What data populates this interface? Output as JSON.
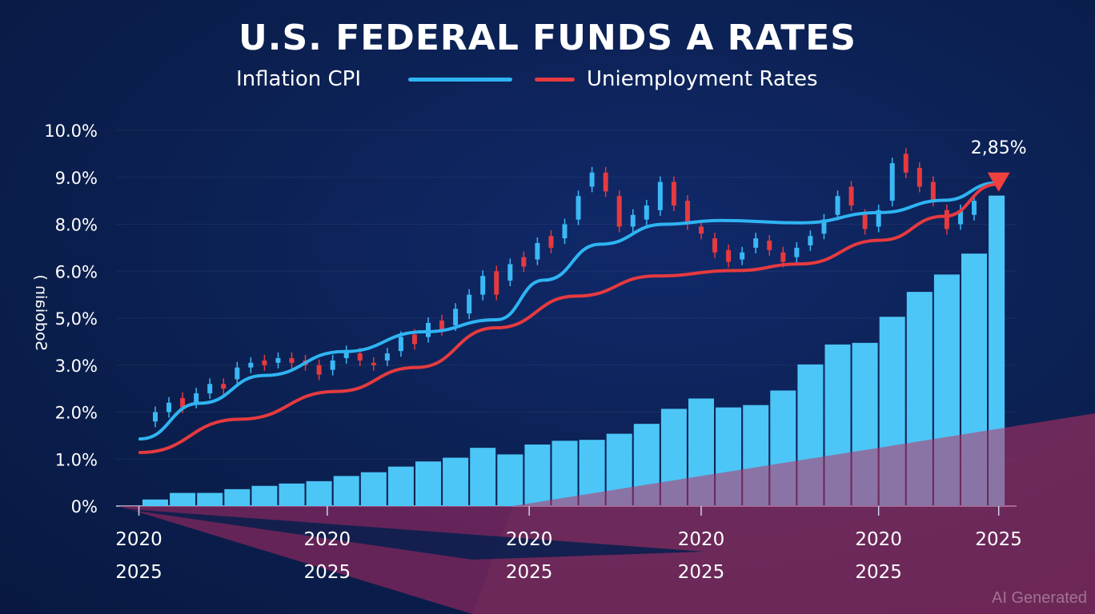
{
  "chart_data": {
    "type": "bar",
    "title": "U.S. FEDERAL FUNDS A RATES",
    "ylabel": "Sodoiain )",
    "legend": [
      {
        "label": "Inflation CPI",
        "color": "#2fb4f2"
      },
      {
        "label": "Uniemployment Rates",
        "color": "#e63a3f"
      }
    ],
    "legend_placement": "top-center",
    "y_ticks": [
      {
        "label": "0%",
        "value": 0
      },
      {
        "label": "1.0%",
        "value": 1
      },
      {
        "label": "2.0%",
        "value": 2
      },
      {
        "label": "3.0%",
        "value": 3
      },
      {
        "label": "5,0%",
        "value": 5
      },
      {
        "label": "6.0%",
        "value": 6
      },
      {
        "label": "8.0%",
        "value": 8
      },
      {
        "label": "9.0%",
        "value": 9
      },
      {
        "label": "10.0%",
        "value": 10
      }
    ],
    "x_ticks": [
      {
        "at": -0.6,
        "lines": [
          "2020",
          "2025"
        ]
      },
      {
        "at": 6.3,
        "lines": [
          "2020",
          "2025"
        ]
      },
      {
        "at": 13.7,
        "lines": [
          "2020",
          "2025"
        ]
      },
      {
        "at": 20.0,
        "lines": [
          "2020",
          "2025"
        ]
      },
      {
        "at": 26.5,
        "lines": [
          "2020",
          "2025"
        ]
      },
      {
        "at": 30.9,
        "lines": [
          "2025"
        ]
      }
    ],
    "bars": {
      "color": "#4cc6f7",
      "values": [
        0.14,
        0.28,
        0.28,
        0.36,
        0.43,
        0.48,
        0.53,
        0.64,
        0.72,
        0.84,
        0.95,
        1.03,
        1.24,
        1.1,
        1.31,
        1.39,
        1.41,
        1.54,
        1.75,
        2.07,
        2.29,
        2.1,
        2.15,
        2.46,
        3.03,
        3.88,
        3.95,
        5.03,
        5.56,
        5.93,
        6.75,
        8.61
      ]
    },
    "series": [
      {
        "name": "Inflation CPI",
        "color": "#2fb4f2",
        "x": [
          -0.56,
          1.64,
          3.99,
          6.92,
          9.85,
          12.49,
          14.25,
          16.3,
          18.65,
          20.7,
          23.64,
          26.57,
          28.91,
          30.82
        ],
        "y": [
          1.43,
          2.19,
          2.78,
          3.58,
          4.42,
          4.93,
          5.81,
          7.15,
          8.0,
          8.08,
          8.03,
          8.25,
          8.51,
          8.88
        ]
      },
      {
        "name": "Uniemployment Rates",
        "color": "#e63a3f",
        "x": [
          -0.56,
          3.11,
          6.63,
          9.56,
          12.49,
          15.42,
          18.36,
          21.29,
          23.64,
          26.57,
          28.91,
          30.82
        ],
        "y": [
          1.14,
          1.85,
          2.44,
          2.95,
          4.59,
          5.47,
          5.9,
          6.03,
          6.31,
          7.32,
          8.17,
          8.85
        ]
      }
    ],
    "candles": [
      [
        0,
        1.8,
        2.0
      ],
      [
        0.5,
        2.0,
        2.2
      ],
      [
        1,
        2.3,
        2.1
      ],
      [
        1.5,
        2.2,
        2.4
      ],
      [
        2,
        2.4,
        2.6
      ],
      [
        2.5,
        2.6,
        2.5
      ],
      [
        3,
        2.7,
        2.95
      ],
      [
        3.5,
        2.95,
        3.1
      ],
      [
        4,
        3.2,
        3.0
      ],
      [
        4.5,
        3.1,
        3.3
      ],
      [
        5,
        3.3,
        3.1
      ],
      [
        5.5,
        3.2,
        3.0
      ],
      [
        6,
        3.0,
        2.8
      ],
      [
        6.5,
        2.9,
        3.2
      ],
      [
        7,
        3.3,
        3.6
      ],
      [
        7.5,
        3.5,
        3.2
      ],
      [
        8,
        3.1,
        3.0
      ],
      [
        8.5,
        3.2,
        3.5
      ],
      [
        9,
        3.6,
        4.2
      ],
      [
        9.5,
        4.3,
        3.9
      ],
      [
        10,
        4.2,
        4.8
      ],
      [
        10.5,
        4.9,
        4.5
      ],
      [
        11,
        4.7,
        5.2
      ],
      [
        11.5,
        5.1,
        5.5
      ],
      [
        12,
        5.5,
        5.9
      ],
      [
        12.5,
        6.0,
        5.5
      ],
      [
        13,
        5.8,
        6.3
      ],
      [
        13.5,
        6.6,
        6.2
      ],
      [
        14,
        6.5,
        7.2
      ],
      [
        14.5,
        7.5,
        7.0
      ],
      [
        15,
        7.4,
        8.0
      ],
      [
        15.5,
        8.1,
        8.6
      ],
      [
        16,
        8.8,
        9.1
      ],
      [
        16.5,
        9.1,
        8.7
      ],
      [
        17,
        8.6,
        7.9
      ],
      [
        17.5,
        7.9,
        8.2
      ],
      [
        18,
        8.1,
        8.4
      ],
      [
        18.5,
        8.3,
        8.9
      ],
      [
        19,
        8.9,
        8.4
      ],
      [
        19.5,
        8.5,
        8.0
      ],
      [
        20,
        7.9,
        7.6
      ],
      [
        20.5,
        7.4,
        6.8
      ],
      [
        21,
        6.9,
        6.4
      ],
      [
        21.5,
        6.5,
        6.8
      ],
      [
        22,
        7.0,
        7.4
      ],
      [
        22.5,
        7.3,
        6.9
      ],
      [
        23,
        6.8,
        6.4
      ],
      [
        23.5,
        6.6,
        7.0
      ],
      [
        24,
        7.1,
        7.5
      ],
      [
        24.5,
        7.6,
        8.1
      ],
      [
        25,
        8.2,
        8.6
      ],
      [
        25.5,
        8.8,
        8.4
      ],
      [
        26,
        8.2,
        7.8
      ],
      [
        26.5,
        7.9,
        8.3
      ],
      [
        27,
        8.5,
        9.3
      ],
      [
        27.5,
        9.5,
        9.1
      ],
      [
        28,
        9.2,
        8.8
      ],
      [
        28.5,
        8.9,
        8.5
      ],
      [
        29,
        8.3,
        7.8
      ],
      [
        29.5,
        8.0,
        8.3
      ],
      [
        30,
        8.2,
        8.5
      ]
    ],
    "annotation": {
      "label": "2,85%",
      "at": 30.9,
      "value": 9.0
    }
  },
  "watermark": "AI Generated"
}
